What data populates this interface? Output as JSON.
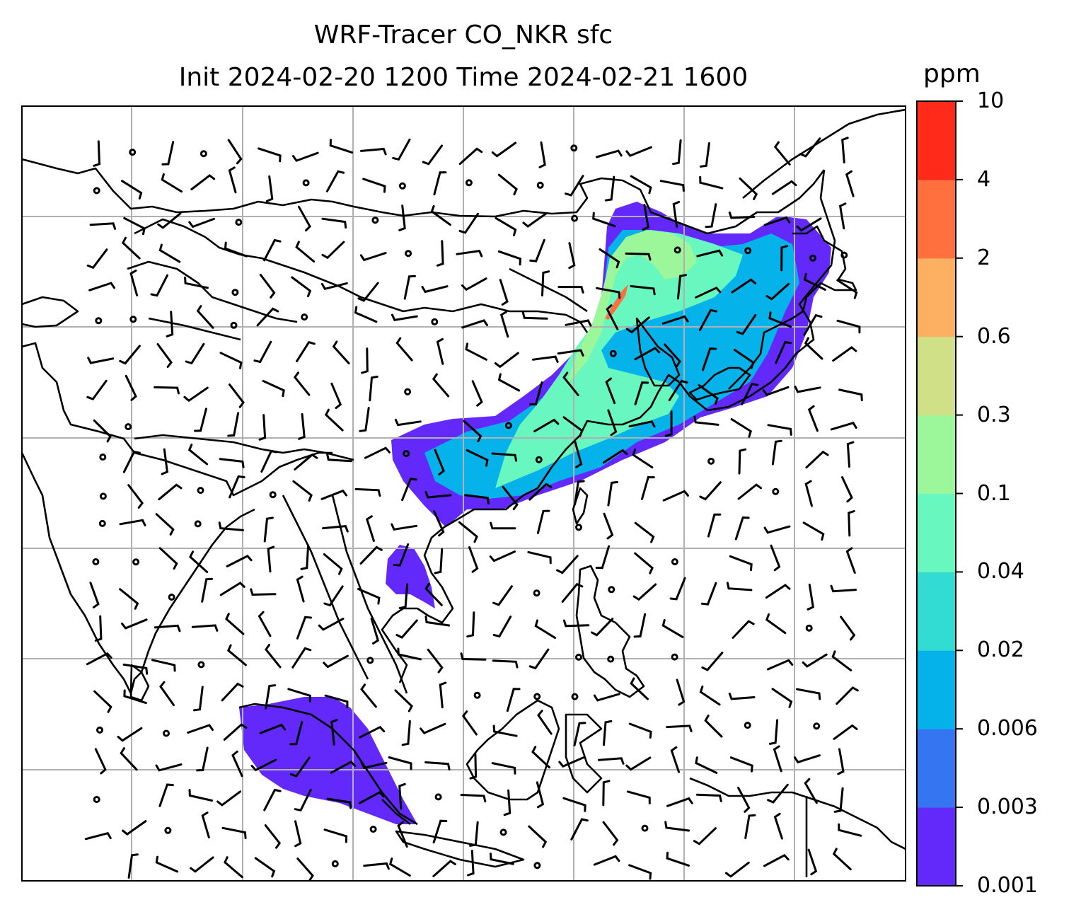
{
  "title": {
    "line1": "WRF-Tracer CO_NKR sfc",
    "line2": "Init 2024-02-20 1200 Time 2024-02-21 1600"
  },
  "colorbar": {
    "unit": "ppm",
    "levels": [
      "0.001",
      "0.003",
      "0.006",
      "0.02",
      "0.04",
      "0.1",
      "0.3",
      "0.6",
      "2",
      "4",
      "10"
    ],
    "colors": [
      "#6329fa",
      "#3575f2",
      "#06b2ea",
      "#32dcd2",
      "#68f7be",
      "#9cf79a",
      "#cfe086",
      "#fdb062",
      "#ff703e",
      "#ff2a1a"
    ]
  },
  "map": {
    "coastline_color": "#000000",
    "grid_color": "#b0b0b0",
    "barb_color": "#000000",
    "plume_levels": {
      "northeast_outer": "0.001",
      "northeast_core": "0.006",
      "northeast_inner": "0.04",
      "northeast_peak": "0.1",
      "hotspot": "2",
      "southeast_asia_blob": "0.001",
      "sumatra_region": "0.001"
    }
  }
}
